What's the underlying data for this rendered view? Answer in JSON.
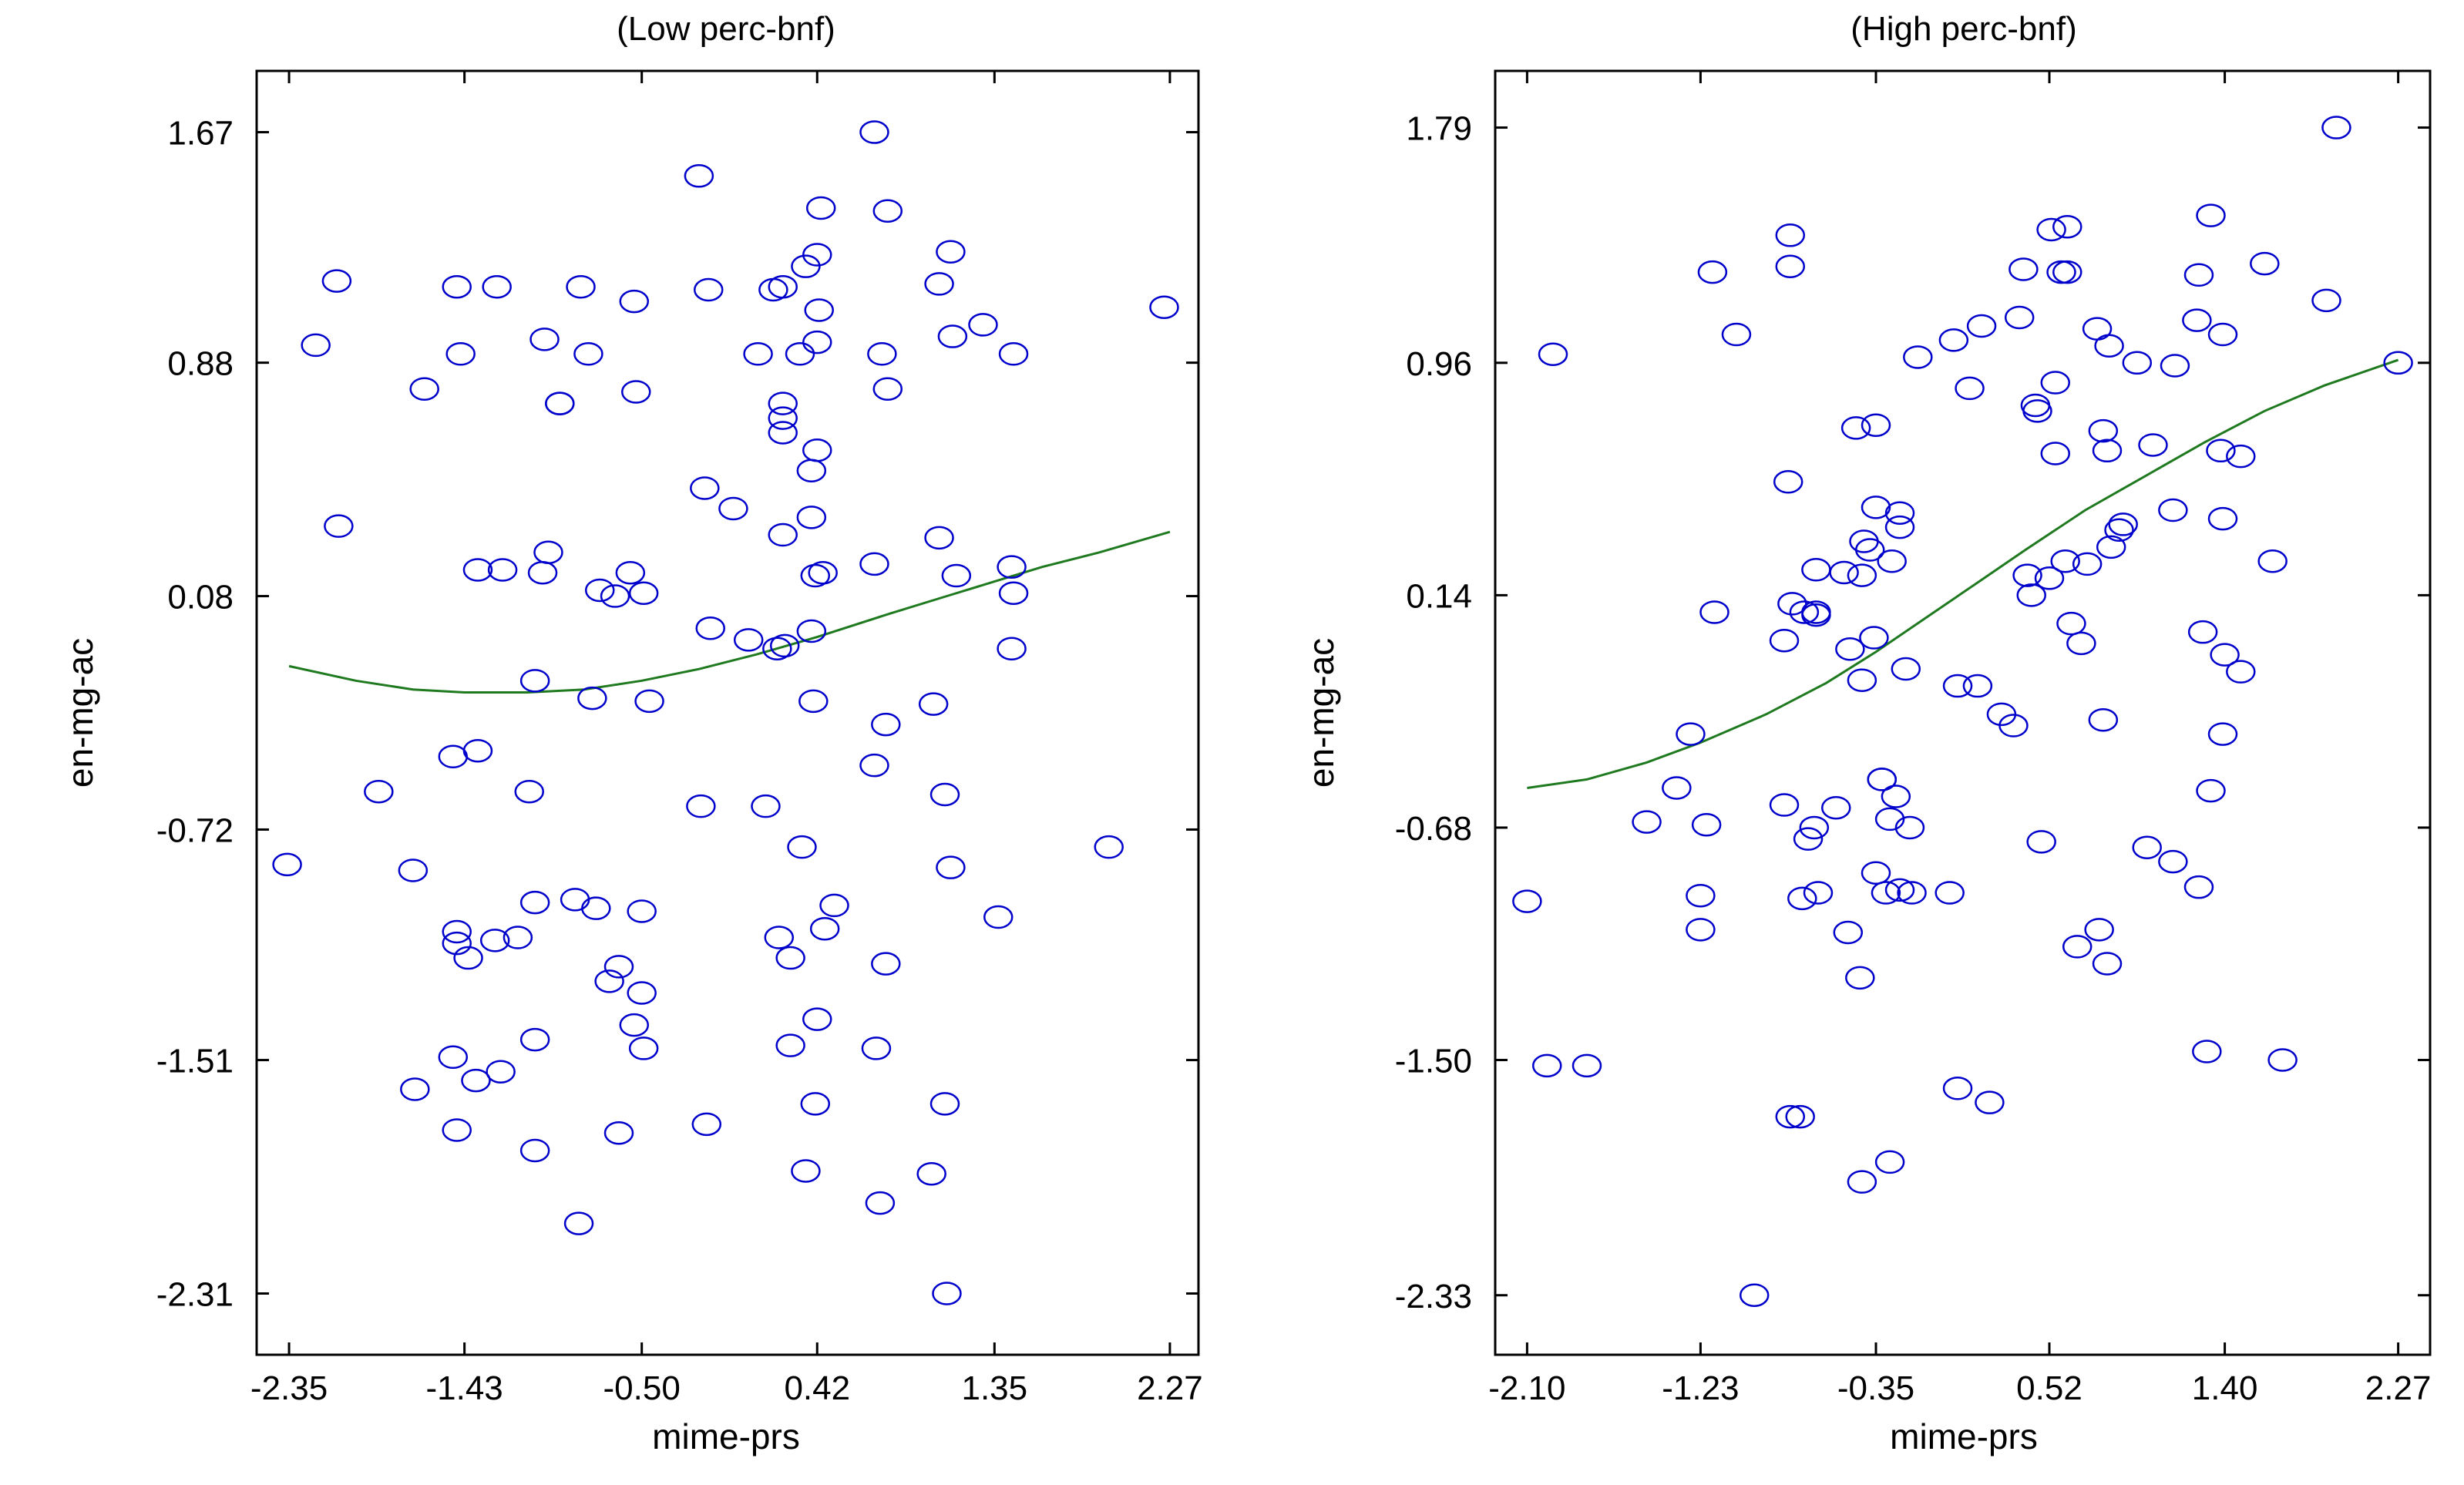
{
  "chart_data": [
    {
      "type": "scatter",
      "title": "(Low perc-bnf)",
      "xlabel": "mime-prs",
      "ylabel": "en-mg-ac",
      "xlim": [
        -2.52,
        2.42
      ],
      "ylim": [
        -2.52,
        1.88
      ],
      "xticks": [
        -2.35,
        -1.43,
        -0.5,
        0.42,
        1.35,
        2.27
      ],
      "xtick_labels": [
        "-2.35",
        "-1.43",
        "-0.50",
        "0.42",
        "1.35",
        "2.27"
      ],
      "yticks": [
        1.67,
        0.88,
        0.08,
        -0.72,
        -1.51,
        -2.31
      ],
      "ytick_labels": [
        "1.67",
        "0.88",
        "0.08",
        "-0.72",
        "-1.51",
        "-2.31"
      ],
      "points": [
        [
          0.72,
          1.67
        ],
        [
          -0.2,
          1.52
        ],
        [
          0.44,
          1.41
        ],
        [
          0.79,
          1.4
        ],
        [
          1.12,
          1.26
        ],
        [
          0.42,
          1.25
        ],
        [
          0.36,
          1.21
        ],
        [
          -2.1,
          1.16
        ],
        [
          -1.47,
          1.14
        ],
        [
          -1.26,
          1.14
        ],
        [
          -0.82,
          1.14
        ],
        [
          -0.15,
          1.13
        ],
        [
          0.19,
          1.13
        ],
        [
          0.24,
          1.14
        ],
        [
          1.06,
          1.15
        ],
        [
          -0.54,
          1.09
        ],
        [
          0.43,
          1.06
        ],
        [
          2.24,
          1.07
        ],
        [
          1.29,
          1.01
        ],
        [
          -2.21,
          0.94
        ],
        [
          -1.01,
          0.96
        ],
        [
          1.13,
          0.97
        ],
        [
          0.42,
          0.95
        ],
        [
          -1.45,
          0.91
        ],
        [
          -0.78,
          0.91
        ],
        [
          0.11,
          0.91
        ],
        [
          0.33,
          0.91
        ],
        [
          0.76,
          0.91
        ],
        [
          1.45,
          0.91
        ],
        [
          -1.64,
          0.79
        ],
        [
          -0.53,
          0.78
        ],
        [
          0.79,
          0.79
        ],
        [
          -0.93,
          0.74
        ],
        [
          -0.93,
          0.74
        ],
        [
          0.24,
          0.74
        ],
        [
          0.24,
          0.69
        ],
        [
          0.24,
          0.64
        ],
        [
          0.42,
          0.58
        ],
        [
          0.39,
          0.51
        ],
        [
          -2.09,
          0.32
        ],
        [
          -0.17,
          0.45
        ],
        [
          -0.02,
          0.38
        ],
        [
          0.39,
          0.35
        ],
        [
          0.24,
          0.29
        ],
        [
          1.06,
          0.28
        ],
        [
          -0.99,
          0.23
        ],
        [
          -1.36,
          0.17
        ],
        [
          -1.23,
          0.17
        ],
        [
          -1.02,
          0.16
        ],
        [
          -0.56,
          0.16
        ],
        [
          0.41,
          0.15
        ],
        [
          0.45,
          0.16
        ],
        [
          0.72,
          0.19
        ],
        [
          1.44,
          0.18
        ],
        [
          1.15,
          0.15
        ],
        [
          -0.72,
          0.1
        ],
        [
          -0.49,
          0.09
        ],
        [
          -0.64,
          0.08
        ],
        [
          1.45,
          0.09
        ],
        [
          -0.14,
          -0.03
        ],
        [
          0.06,
          -0.07
        ],
        [
          0.39,
          -0.04
        ],
        [
          0.25,
          -0.09
        ],
        [
          0.21,
          -0.1
        ],
        [
          1.44,
          -0.1
        ],
        [
          -1.06,
          -0.21
        ],
        [
          -0.76,
          -0.27
        ],
        [
          -0.46,
          -0.28
        ],
        [
          0.4,
          -0.28
        ],
        [
          1.03,
          -0.29
        ],
        [
          -1.49,
          -0.47
        ],
        [
          -1.36,
          -0.45
        ],
        [
          0.78,
          -0.36
        ],
        [
          0.72,
          -0.5
        ],
        [
          -1.88,
          -0.59
        ],
        [
          -1.09,
          -0.59
        ],
        [
          1.09,
          -0.6
        ],
        [
          -0.19,
          -0.64
        ],
        [
          0.15,
          -0.64
        ],
        [
          0.34,
          -0.78
        ],
        [
          1.95,
          -0.78
        ],
        [
          -2.36,
          -0.84
        ],
        [
          -1.7,
          -0.86
        ],
        [
          1.12,
          -0.85
        ],
        [
          -0.85,
          -0.96
        ],
        [
          -1.06,
          -0.97
        ],
        [
          -0.74,
          -0.99
        ],
        [
          -0.5,
          -1.0
        ],
        [
          0.51,
          -0.98
        ],
        [
          1.37,
          -1.02
        ],
        [
          -1.47,
          -1.07
        ],
        [
          -1.47,
          -1.11
        ],
        [
          -1.27,
          -1.1
        ],
        [
          -1.15,
          -1.09
        ],
        [
          -1.41,
          -1.16
        ],
        [
          -0.62,
          -1.19
        ],
        [
          0.22,
          -1.09
        ],
        [
          0.46,
          -1.06
        ],
        [
          -0.67,
          -1.24
        ],
        [
          0.28,
          -1.16
        ],
        [
          0.78,
          -1.18
        ],
        [
          -0.5,
          -1.28
        ],
        [
          -0.54,
          -1.39
        ],
        [
          0.42,
          -1.37
        ],
        [
          -1.06,
          -1.44
        ],
        [
          -1.49,
          -1.5
        ],
        [
          -0.49,
          -1.47
        ],
        [
          0.28,
          -1.46
        ],
        [
          0.73,
          -1.47
        ],
        [
          -1.24,
          -1.55
        ],
        [
          -1.37,
          -1.58
        ],
        [
          -1.69,
          -1.61
        ],
        [
          0.41,
          -1.66
        ],
        [
          1.09,
          -1.66
        ],
        [
          -0.16,
          -1.73
        ],
        [
          -1.47,
          -1.75
        ],
        [
          -0.62,
          -1.76
        ],
        [
          -1.06,
          -1.82
        ],
        [
          0.36,
          -1.89
        ],
        [
          1.02,
          -1.9
        ],
        [
          0.75,
          -2.0
        ],
        [
          -0.83,
          -2.07
        ],
        [
          1.1,
          -2.31
        ]
      ],
      "fit_curve": [
        [
          -2.35,
          -0.16
        ],
        [
          -2.0,
          -0.21
        ],
        [
          -1.7,
          -0.24
        ],
        [
          -1.43,
          -0.25
        ],
        [
          -1.1,
          -0.25
        ],
        [
          -0.8,
          -0.24
        ],
        [
          -0.5,
          -0.21
        ],
        [
          -0.2,
          -0.17
        ],
        [
          0.1,
          -0.12
        ],
        [
          0.42,
          -0.06
        ],
        [
          0.8,
          0.02
        ],
        [
          1.1,
          0.08
        ],
        [
          1.35,
          0.13
        ],
        [
          1.6,
          0.18
        ],
        [
          1.9,
          0.23
        ],
        [
          2.27,
          0.3
        ]
      ]
    },
    {
      "type": "scatter",
      "title": "(High perc-bnf)",
      "xlabel": "mime-prs",
      "ylabel": "en-mg-ac",
      "xlim": [
        -2.26,
        2.43
      ],
      "ylim": [
        -2.54,
        1.99
      ],
      "xticks": [
        -2.1,
        -1.23,
        -0.35,
        0.52,
        1.4,
        2.27
      ],
      "xtick_labels": [
        "-2.10",
        "-1.23",
        "-0.35",
        "0.52",
        "1.40",
        "2.27"
      ],
      "yticks": [
        1.79,
        0.96,
        0.14,
        -0.68,
        -1.5,
        -2.33
      ],
      "ytick_labels": [
        "1.79",
        "0.96",
        "0.14",
        "-0.68",
        "-1.50",
        "-2.33"
      ],
      "points": [
        [
          1.96,
          1.79
        ],
        [
          1.33,
          1.48
        ],
        [
          -0.78,
          1.41
        ],
        [
          0.53,
          1.43
        ],
        [
          0.61,
          1.44
        ],
        [
          0.76,
          1.08
        ],
        [
          0.82,
          1.02
        ],
        [
          -0.78,
          1.3
        ],
        [
          -1.17,
          1.28
        ],
        [
          0.39,
          1.29
        ],
        [
          0.58,
          1.28
        ],
        [
          1.6,
          1.31
        ],
        [
          1.27,
          1.27
        ],
        [
          0.61,
          1.28
        ],
        [
          1.91,
          1.18
        ],
        [
          0.37,
          1.12
        ],
        [
          0.18,
          1.09
        ],
        [
          -1.05,
          1.06
        ],
        [
          0.04,
          1.04
        ],
        [
          -1.97,
          0.99
        ],
        [
          1.26,
          1.11
        ],
        [
          1.39,
          1.06
        ],
        [
          0.55,
          0.89
        ],
        [
          1.15,
          0.95
        ],
        [
          0.96,
          0.96
        ],
        [
          -0.14,
          0.98
        ],
        [
          0.12,
          0.87
        ],
        [
          0.45,
          0.81
        ],
        [
          0.46,
          0.79
        ],
        [
          0.55,
          0.64
        ],
        [
          0.79,
          0.72
        ],
        [
          0.81,
          0.65
        ],
        [
          1.04,
          0.67
        ],
        [
          1.38,
          0.65
        ],
        [
          1.48,
          0.63
        ],
        [
          -0.45,
          0.73
        ],
        [
          -0.35,
          0.74
        ],
        [
          2.27,
          0.96
        ],
        [
          -0.79,
          0.54
        ],
        [
          -0.35,
          0.45
        ],
        [
          -0.23,
          0.43
        ],
        [
          -0.23,
          0.38
        ],
        [
          -0.41,
          0.33
        ],
        [
          -0.38,
          0.3
        ],
        [
          -0.27,
          0.26
        ],
        [
          0.89,
          0.39
        ],
        [
          0.87,
          0.37
        ],
        [
          0.83,
          0.31
        ],
        [
          1.14,
          0.44
        ],
        [
          1.39,
          0.41
        ],
        [
          1.64,
          0.26
        ],
        [
          -1.16,
          0.08
        ],
        [
          -0.51,
          0.22
        ],
        [
          -0.42,
          0.21
        ],
        [
          0.41,
          0.21
        ],
        [
          0.52,
          0.2
        ],
        [
          0.6,
          0.26
        ],
        [
          0.71,
          0.25
        ],
        [
          0.43,
          0.14
        ],
        [
          0.63,
          0.04
        ],
        [
          0.68,
          -0.03
        ],
        [
          1.29,
          0.01
        ],
        [
          1.4,
          -0.07
        ],
        [
          -0.36,
          -0.01
        ],
        [
          -0.48,
          -0.05
        ],
        [
          -0.65,
          0.23
        ],
        [
          -0.65,
          0.07
        ],
        [
          -0.71,
          0.08
        ],
        [
          -0.65,
          0.08
        ],
        [
          -0.77,
          0.11
        ],
        [
          -0.2,
          -0.12
        ],
        [
          0.06,
          -0.18
        ],
        [
          0.16,
          -0.18
        ],
        [
          0.28,
          -0.28
        ],
        [
          0.34,
          -0.32
        ],
        [
          0.79,
          -0.3
        ],
        [
          1.39,
          -0.35
        ],
        [
          1.33,
          -0.55
        ],
        [
          -0.81,
          -0.02
        ],
        [
          -0.42,
          -0.16
        ],
        [
          1.48,
          -0.13
        ],
        [
          -1.28,
          -0.35
        ],
        [
          -1.2,
          -0.67
        ],
        [
          -1.35,
          -0.54
        ],
        [
          -0.81,
          -0.6
        ],
        [
          -0.55,
          -0.61
        ],
        [
          -0.32,
          -0.51
        ],
        [
          -0.32,
          -0.51
        ],
        [
          -0.25,
          -0.57
        ],
        [
          -0.28,
          -0.65
        ],
        [
          -0.18,
          -0.68
        ],
        [
          0.48,
          -0.73
        ],
        [
          -1.5,
          -0.66
        ],
        [
          -0.66,
          -0.68
        ],
        [
          -0.69,
          -0.72
        ],
        [
          -0.35,
          -0.84
        ],
        [
          1.01,
          -0.75
        ],
        [
          1.14,
          -0.8
        ],
        [
          1.27,
          -0.89
        ],
        [
          -2.1,
          -0.94
        ],
        [
          -0.72,
          -0.93
        ],
        [
          -1.23,
          -0.92
        ],
        [
          -0.64,
          -0.91
        ],
        [
          -0.23,
          -0.9
        ],
        [
          -0.3,
          -0.91
        ],
        [
          -0.17,
          -0.91
        ],
        [
          0.02,
          -0.91
        ],
        [
          -1.23,
          -1.04
        ],
        [
          -0.49,
          -1.05
        ],
        [
          0.77,
          -1.04
        ],
        [
          0.66,
          -1.1
        ],
        [
          0.81,
          -1.16
        ],
        [
          -0.43,
          -1.21
        ],
        [
          -2.0,
          -1.52
        ],
        [
          -1.8,
          -1.52
        ],
        [
          1.31,
          -1.47
        ],
        [
          1.69,
          -1.5
        ],
        [
          0.06,
          -1.6
        ],
        [
          0.22,
          -1.65
        ],
        [
          -0.78,
          -1.7
        ],
        [
          -0.73,
          -1.7
        ],
        [
          -0.28,
          -1.86
        ],
        [
          -0.42,
          -1.93
        ],
        [
          -0.96,
          -2.33
        ]
      ],
      "fit_curve": [
        [
          -2.1,
          -0.54
        ],
        [
          -1.8,
          -0.51
        ],
        [
          -1.5,
          -0.45
        ],
        [
          -1.23,
          -0.38
        ],
        [
          -0.9,
          -0.28
        ],
        [
          -0.6,
          -0.17
        ],
        [
          -0.35,
          -0.06
        ],
        [
          -0.1,
          0.06
        ],
        [
          0.15,
          0.18
        ],
        [
          0.4,
          0.3
        ],
        [
          0.7,
          0.44
        ],
        [
          1.0,
          0.56
        ],
        [
          1.3,
          0.68
        ],
        [
          1.6,
          0.79
        ],
        [
          1.9,
          0.88
        ],
        [
          2.27,
          0.97
        ]
      ]
    }
  ]
}
